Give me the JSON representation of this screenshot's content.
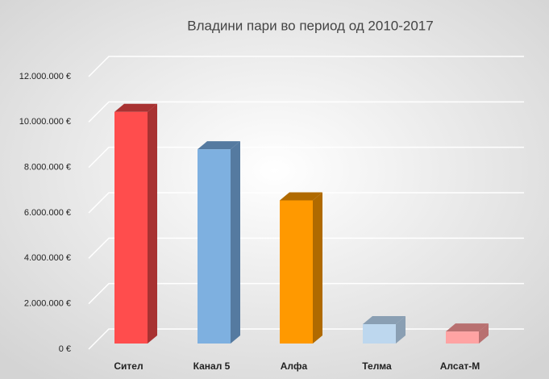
{
  "chart_data": {
    "type": "bar3d",
    "title": "Владини пари во период од 2010-2017",
    "categories": [
      "Сител",
      "Канал  5",
      "Алфа",
      "Телма",
      "Алсат-М"
    ],
    "values": [
      10200000,
      8550000,
      6300000,
      850000,
      530000
    ],
    "colors": [
      "#ff4d4d",
      "#7eb0e0",
      "#ff9900",
      "#bdd7ee",
      "#ffa3a3"
    ],
    "side_colors": [
      "#a83232",
      "#557aa0",
      "#b06a00",
      "#8a9fb3",
      "#b87070"
    ],
    "ylim": [
      0,
      12000000
    ],
    "yticks": [
      {
        "value": 0,
        "label": "0 €"
      },
      {
        "value": 2000000,
        "label": "2.000.000 €"
      },
      {
        "value": 4000000,
        "label": "4.000.000 €"
      },
      {
        "value": 6000000,
        "label": "6.000.000 €"
      },
      {
        "value": 8000000,
        "label": "8.000.000 €"
      },
      {
        "value": 10000000,
        "label": "10.000.000 €"
      },
      {
        "value": 12000000,
        "label": "12.000.000 €"
      }
    ],
    "grid": true
  }
}
